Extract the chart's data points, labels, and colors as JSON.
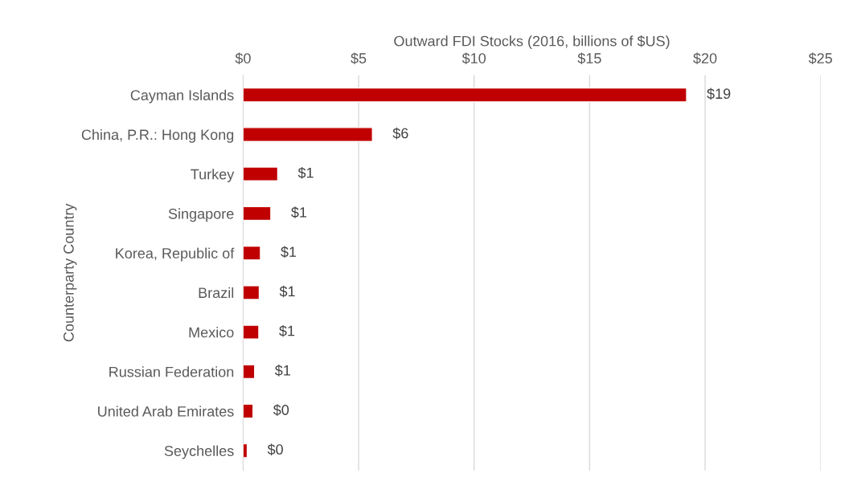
{
  "chart_data": {
    "type": "bar",
    "orientation": "horizontal",
    "xlabel": "Outward FDI Stocks (2016, billions of $US)",
    "ylabel": "Counterparty Country",
    "categories": [
      "Cayman Islands",
      "China, P.R.: Hong Kong",
      "Turkey",
      "Singapore",
      "Korea, Republic of",
      "Brazil",
      "Mexico",
      "Russian Federation",
      "United Arab Emirates",
      "Seychelles"
    ],
    "values": [
      19.2,
      5.6,
      1.5,
      1.2,
      0.75,
      0.7,
      0.68,
      0.5,
      0.43,
      0.18
    ],
    "value_labels": [
      "$19",
      "$6",
      "$1",
      "$1",
      "$1",
      "$1",
      "$1",
      "$1",
      "$0",
      "$0"
    ],
    "color": "#c00000",
    "xlim": [
      0,
      25
    ],
    "xticks": [
      {
        "value": 0,
        "label": "$0"
      },
      {
        "value": 5,
        "label": "$5"
      },
      {
        "value": 10,
        "label": "$10"
      },
      {
        "value": 15,
        "label": "$15"
      },
      {
        "value": 20,
        "label": "$20"
      },
      {
        "value": 25,
        "label": "$25"
      }
    ],
    "grid": "x",
    "legend": false
  }
}
